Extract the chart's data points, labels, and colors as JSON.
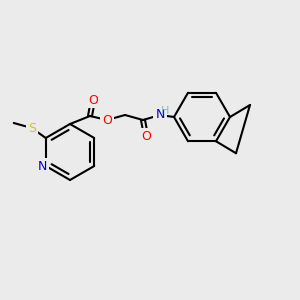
{
  "bg_color": "#ebebeb",
  "bond_color": "#000000",
  "bond_width": 1.5,
  "atom_colors": {
    "N": "#0000cc",
    "O": "#ff0000",
    "S": "#cccc00",
    "H": "#7fbfbf",
    "C": "#000000"
  },
  "font_size": 9,
  "font_size_small": 7
}
